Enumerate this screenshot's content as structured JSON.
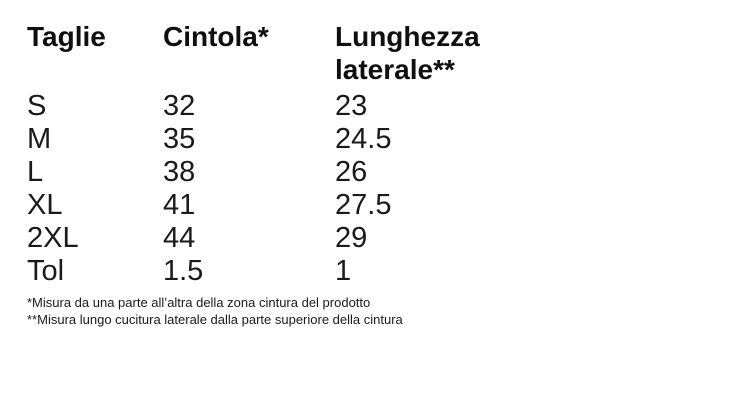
{
  "chart_data": {
    "type": "table",
    "columns": [
      "Taglie",
      "Cintola*",
      "Lunghezza laterale**"
    ],
    "rows": [
      [
        "S",
        "32",
        "23"
      ],
      [
        "M",
        "35",
        "24.5"
      ],
      [
        "L",
        "38",
        "26"
      ],
      [
        "XL",
        "41",
        "27.5"
      ],
      [
        "2XL",
        "44",
        "29"
      ],
      [
        "Tol",
        "1.5",
        "1"
      ]
    ],
    "footnotes": [
      "*Misura da una parte all’altra della zona cintura del prodotto",
      "**Misura lungo cucitura laterale dalla parte superiore della cintura"
    ]
  },
  "colors": {
    "background": "#ffffff",
    "header_text": "#0f0f0f",
    "body_text": "#1a1a1a"
  }
}
